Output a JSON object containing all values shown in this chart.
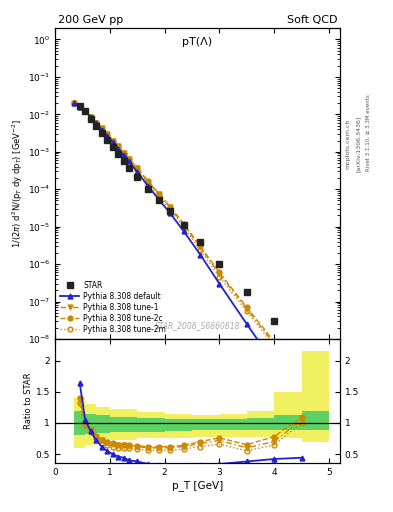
{
  "title_left": "200 GeV pp",
  "title_right": "Soft QCD",
  "plot_title": "pT(Λ)",
  "ylabel_main": "1/(2π) d²N/(p_T dy dp_T) [GeV⁻²]",
  "ylabel_ratio": "Ratio to STAR",
  "xlabel": "p_T [GeV]",
  "watermark": "STAR_2006_S6860818",
  "right_label_top": "Rivet 3.1.10, ≥ 3.3M events",
  "right_label_mid": "[arXiv:1306.3436]",
  "right_label_bot": "mcplots.cern.ch",
  "star_x": [
    0.45,
    0.55,
    0.65,
    0.75,
    0.85,
    0.95,
    1.05,
    1.15,
    1.25,
    1.35,
    1.5,
    1.7,
    1.9,
    2.1,
    2.35,
    2.65,
    3.0,
    3.5,
    4.0,
    4.5
  ],
  "star_y": [
    0.017,
    0.012,
    0.0075,
    0.005,
    0.0032,
    0.0021,
    0.00135,
    0.00088,
    0.00058,
    0.00038,
    0.00021,
    0.0001,
    5.2e-05,
    2.7e-05,
    1.1e-05,
    3.8e-06,
    1e-06,
    1.8e-07,
    3e-08,
    5e-09
  ],
  "star_yerr": [
    0.001,
    0.0008,
    0.0005,
    0.0003,
    0.0002,
    0.00013,
    8e-05,
    5e-05,
    3e-05,
    2e-05,
    1e-05,
    5e-06,
    2.5e-06,
    1.5e-06,
    6e-07,
    2e-07,
    6e-08,
    1.2e-08,
    2.5e-09,
    5e-10
  ],
  "pythia_x": [
    0.35,
    0.45,
    0.55,
    0.65,
    0.75,
    0.85,
    0.95,
    1.05,
    1.15,
    1.25,
    1.35,
    1.5,
    1.7,
    1.9,
    2.1,
    2.35,
    2.65,
    3.0,
    3.5,
    4.0,
    4.5,
    4.9
  ],
  "default_y": [
    0.02,
    0.016,
    0.012,
    0.0085,
    0.0058,
    0.0039,
    0.0026,
    0.0018,
    0.0012,
    0.00081,
    0.00055,
    0.00029,
    0.00012,
    5.2e-05,
    2.3e-05,
    7.5e-06,
    1.8e-06,
    3e-07,
    2.5e-08,
    2.2e-09,
    2e-10,
    2e-11
  ],
  "tune1_y": [
    0.02,
    0.016,
    0.012,
    0.0085,
    0.006,
    0.0042,
    0.0029,
    0.002,
    0.0014,
    0.00095,
    0.00065,
    0.00036,
    0.00016,
    7.3e-05,
    3.3e-05,
    1.1e-05,
    2.8e-06,
    5.5e-07,
    6.5e-08,
    7.5e-09,
    9e-10,
    1.2e-10
  ],
  "tune2c_y": [
    0.02,
    0.016,
    0.012,
    0.0085,
    0.006,
    0.0042,
    0.0029,
    0.002,
    0.0014,
    0.00095,
    0.00065,
    0.00037,
    0.000165,
    7.5e-05,
    3.4e-05,
    1.2e-05,
    3e-06,
    6e-07,
    7e-08,
    8.5e-09,
    1e-09,
    1.3e-10
  ],
  "tune2m_y": [
    0.02,
    0.016,
    0.012,
    0.0083,
    0.0057,
    0.0039,
    0.0027,
    0.0018,
    0.0013,
    0.00086,
    0.00059,
    0.00032,
    0.000142,
    6.4e-05,
    2.9e-05,
    9.5e-06,
    2.4e-06,
    4.6e-07,
    5.5e-08,
    6.5e-09,
    8e-10,
    1e-10
  ],
  "ratio_x": [
    0.45,
    0.55,
    0.65,
    0.75,
    0.85,
    0.95,
    1.05,
    1.15,
    1.25,
    1.35,
    1.5,
    1.7,
    1.9,
    2.1,
    2.35,
    2.65,
    3.0,
    3.5,
    4.0,
    4.5
  ],
  "ratio_default_y": [
    1.65,
    1.05,
    0.87,
    0.72,
    0.62,
    0.55,
    0.5,
    0.46,
    0.44,
    0.4,
    0.38,
    0.34,
    0.32,
    0.3,
    0.3,
    0.32,
    0.34,
    0.38,
    0.42,
    0.44
  ],
  "ratio_tune1_y": [
    1.38,
    1.0,
    0.88,
    0.78,
    0.72,
    0.68,
    0.66,
    0.64,
    0.64,
    0.63,
    0.62,
    0.6,
    0.6,
    0.6,
    0.62,
    0.67,
    0.72,
    0.6,
    0.7,
    1.05
  ],
  "ratio_tune2c_y": [
    1.4,
    1.0,
    0.89,
    0.79,
    0.73,
    0.69,
    0.67,
    0.65,
    0.65,
    0.64,
    0.63,
    0.62,
    0.62,
    0.62,
    0.64,
    0.7,
    0.76,
    0.65,
    0.78,
    1.1
  ],
  "ratio_tune2m_y": [
    1.32,
    0.97,
    0.86,
    0.76,
    0.68,
    0.65,
    0.62,
    0.59,
    0.6,
    0.59,
    0.58,
    0.56,
    0.56,
    0.56,
    0.58,
    0.62,
    0.66,
    0.55,
    0.65,
    1.0
  ],
  "band_x_edges": [
    0.35,
    0.55,
    0.75,
    1.0,
    1.5,
    2.0,
    2.5,
    3.0,
    3.5,
    4.0,
    4.5,
    5.0
  ],
  "band_inner_lo": [
    0.8,
    0.82,
    0.84,
    0.85,
    0.86,
    0.87,
    0.88,
    0.88,
    0.88,
    0.88,
    0.88
  ],
  "band_inner_hi": [
    1.2,
    1.15,
    1.12,
    1.1,
    1.08,
    1.07,
    1.06,
    1.06,
    1.08,
    1.12,
    1.2
  ],
  "band_outer_lo": [
    0.6,
    0.65,
    0.7,
    0.72,
    0.75,
    0.76,
    0.77,
    0.77,
    0.77,
    0.75,
    0.7
  ],
  "band_outer_hi": [
    1.4,
    1.3,
    1.25,
    1.22,
    1.18,
    1.15,
    1.13,
    1.15,
    1.2,
    1.5,
    2.15
  ],
  "color_default": "#2222cc",
  "color_tune1": "#cc8800",
  "color_tune2c": "#cc8800",
  "color_tune2m": "#cc8800",
  "color_star": "#222222",
  "color_band_inner": "#44cc66",
  "color_band_outer": "#eeee44",
  "ylim_main": [
    1e-08,
    2.0
  ],
  "ylim_ratio": [
    0.35,
    2.35
  ],
  "xlim": [
    0.0,
    5.2
  ],
  "xticks": [
    0,
    1,
    2,
    3,
    4,
    5
  ],
  "yticks_ratio": [
    0.5,
    1.0,
    1.5,
    2.0
  ]
}
